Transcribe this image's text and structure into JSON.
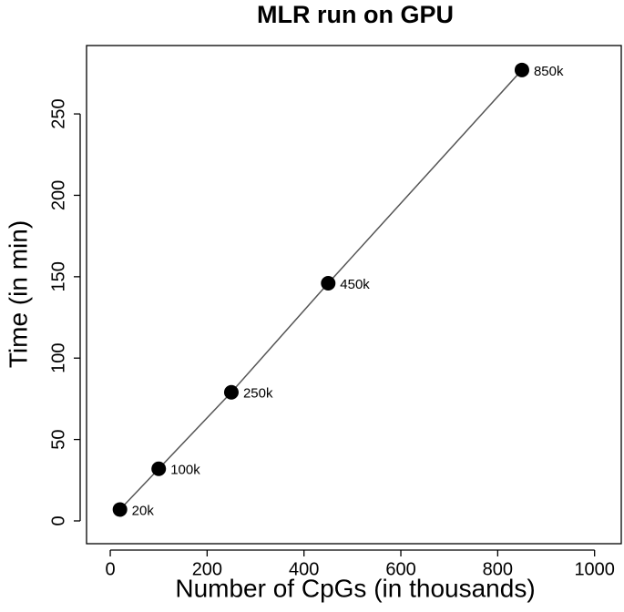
{
  "chart_data": {
    "type": "line",
    "title": "MLR run on GPU",
    "x_label": "Number of CpGs (in thousands)",
    "y_label": "Time (in min)",
    "x": [
      20,
      100,
      250,
      450,
      850
    ],
    "series": [
      {
        "name": null,
        "color": "#000000",
        "values": [
          7,
          32,
          79,
          146,
          277
        ]
      }
    ],
    "point_labels": [
      "20k",
      "100k",
      "250k",
      "450k",
      "850k"
    ],
    "xlim": [
      -49,
      1057
    ],
    "xticks": [
      0,
      200,
      400,
      600,
      800,
      1000
    ],
    "ylim": [
      -14,
      292
    ],
    "yticks": [
      0,
      50,
      100,
      150,
      200,
      250
    ],
    "grid": false
  }
}
